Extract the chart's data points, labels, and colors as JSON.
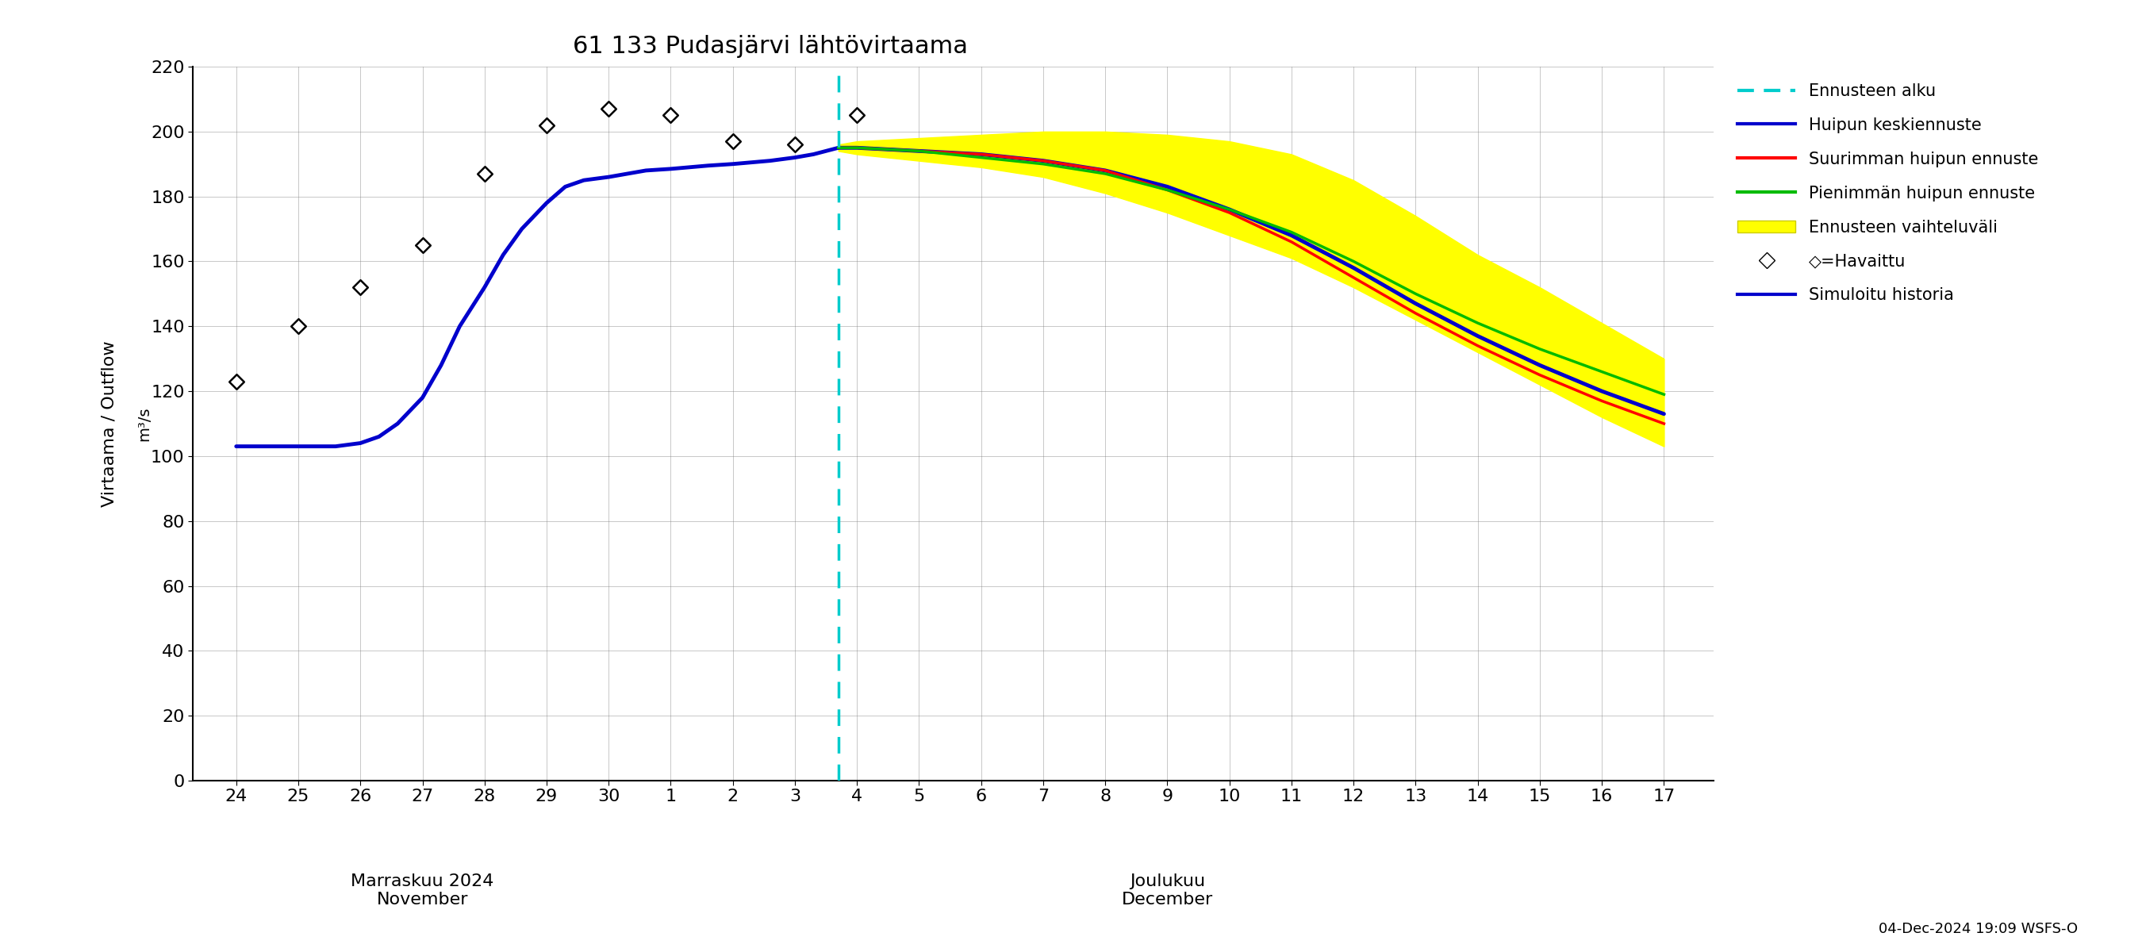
{
  "title": "61 133 Pudasjärvi lähtövirtaama",
  "ylabel1": "Virtaama / Outflow",
  "ylabel2": "m³/s",
  "xlabel_nov": "Marraskuu 2024\nNovember",
  "xlabel_dec": "Joulukuu\nDecember",
  "footer": "04-Dec-2024 19:09 WSFS-O",
  "ylim": [
    0,
    220
  ],
  "yticks": [
    0,
    20,
    40,
    60,
    80,
    100,
    120,
    140,
    160,
    180,
    200,
    220
  ],
  "x_nov_ticks": [
    24,
    25,
    26,
    27,
    28,
    29,
    30
  ],
  "x_dec_ticks": [
    1,
    2,
    3,
    4,
    5,
    6,
    7,
    8,
    9,
    10,
    11,
    12,
    13,
    14,
    15,
    16,
    17
  ],
  "xlim": [
    23.3,
    47.8
  ],
  "forecast_start_x": 33.7,
  "sim_history_x": [
    24,
    24.5,
    25,
    25.3,
    25.6,
    26,
    26.3,
    26.6,
    27,
    27.3,
    27.6,
    28,
    28.3,
    28.6,
    29,
    29.3,
    29.6,
    30,
    30.3,
    30.6,
    31,
    31.3,
    31.6,
    32,
    32.3,
    32.6,
    33,
    33.3,
    33.6,
    33.7
  ],
  "sim_history_y": [
    103,
    103,
    103,
    103,
    103,
    104,
    106,
    110,
    118,
    128,
    140,
    152,
    162,
    170,
    178,
    183,
    185,
    186,
    187,
    188,
    188.5,
    189,
    189.5,
    190,
    190.5,
    191,
    192,
    193,
    194.5,
    195
  ],
  "observed_x": [
    24,
    25,
    26,
    27,
    28,
    29,
    30,
    31,
    32,
    33,
    34
  ],
  "observed_y": [
    123,
    140,
    152,
    165,
    187,
    202,
    207,
    205,
    197,
    196,
    205
  ],
  "mean_forecast_x": [
    33.7,
    34,
    35,
    36,
    37,
    38,
    39,
    40,
    41,
    42,
    43,
    44,
    45,
    46,
    47
  ],
  "mean_forecast_y": [
    195,
    195,
    194,
    193,
    191,
    188,
    183,
    176,
    168,
    158,
    147,
    137,
    128,
    120,
    113
  ],
  "max_forecast_x": [
    33.7,
    34,
    35,
    36,
    37,
    38,
    39,
    40,
    41,
    42,
    43,
    44,
    45,
    46,
    47
  ],
  "max_forecast_y": [
    195,
    195,
    194,
    193,
    191,
    188,
    182,
    175,
    166,
    155,
    144,
    134,
    125,
    117,
    110
  ],
  "min_forecast_x": [
    33.7,
    34,
    35,
    36,
    37,
    38,
    39,
    40,
    41,
    42,
    43,
    44,
    45,
    46,
    47
  ],
  "min_forecast_y": [
    195,
    195,
    194,
    192,
    190,
    187,
    182,
    176,
    169,
    160,
    150,
    141,
    133,
    126,
    119
  ],
  "band_upper_x": [
    33.7,
    34,
    35,
    36,
    37,
    38,
    39,
    40,
    41,
    42,
    43,
    44,
    45,
    46,
    47
  ],
  "band_upper_y": [
    196,
    197,
    198,
    199,
    200,
    200,
    199,
    197,
    193,
    185,
    174,
    162,
    152,
    141,
    130
  ],
  "band_lower_y": [
    194,
    193,
    191,
    189,
    186,
    181,
    175,
    168,
    161,
    152,
    142,
    132,
    122,
    112,
    103
  ],
  "color_sim": "#0000cc",
  "color_mean": "#0000cc",
  "color_max": "#ff0000",
  "color_min": "#00bb00",
  "color_band": "#ffff00",
  "color_forecast_line": "#00cccc",
  "color_observed": "#000000",
  "linewidth_main": 3.5,
  "linewidth_forecast": 2.5
}
